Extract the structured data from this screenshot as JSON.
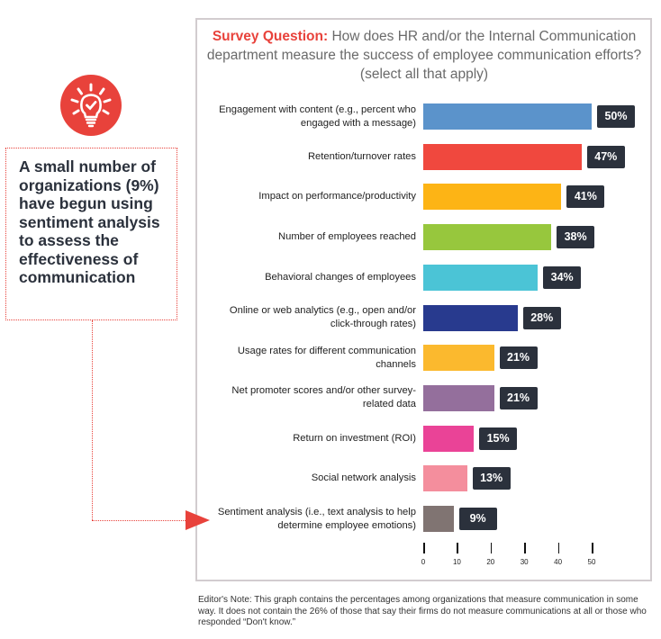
{
  "question": {
    "lead": "Survey Question:",
    "text": " How does HR and/or the Internal Communication department measure the success of employee communication efforts? (select all that apply)"
  },
  "callout": {
    "icon": "lightbulb-check-icon",
    "text": "A small number of organizations (9%) have begun using sentiment analysis to assess the effectiveness of communication",
    "accent_color": "#e8423b"
  },
  "note": "Editor's Note: This graph contains the percentages among organizations that measure communication in some way. It does not contain the 26% of those that say their firms do not measure communications at all or those who responded “Don't know.”",
  "chart_data": {
    "type": "bar",
    "orientation": "horizontal",
    "title": "Survey Question: How does HR and/or the Internal Communication department measure the success of employee communication efforts? (select all that apply)",
    "xlabel": "",
    "ylabel": "",
    "xlim": [
      0,
      50
    ],
    "grid": false,
    "x_ticks": [
      0,
      10,
      20,
      30,
      40,
      50
    ],
    "categories": [
      "Engagement with content (e.g., percent who engaged with a message)",
      "Retention/turnover rates",
      "Impact on performance/productivity",
      "Number of employees reached",
      "Behavioral changes of employees",
      "Online or web analytics (e.g., open and/or click-through rates)",
      "Usage rates for different communication channels",
      "Net promoter scores and/or other survey-related data",
      "Return on investment (ROI)",
      "Social network analysis",
      "Sentiment analysis (i.e.,  text analysis to help determine employee emotions)"
    ],
    "values": [
      50,
      47,
      41,
      38,
      34,
      28,
      21,
      21,
      15,
      13,
      9
    ],
    "value_labels": [
      "50%",
      "47%",
      "41%",
      "38%",
      "34%",
      "28%",
      "21%",
      "21%",
      "15%",
      "13%",
      "9%"
    ],
    "colors": [
      "#5b93cb",
      "#f0483e",
      "#fdb415",
      "#97c73d",
      "#4bc4d6",
      "#283a8e",
      "#fbb92e",
      "#946f9c",
      "#ea4397",
      "#f48e9d",
      "#807472"
    ],
    "label_color": "#2b313c",
    "highlight_category_index": 10
  }
}
